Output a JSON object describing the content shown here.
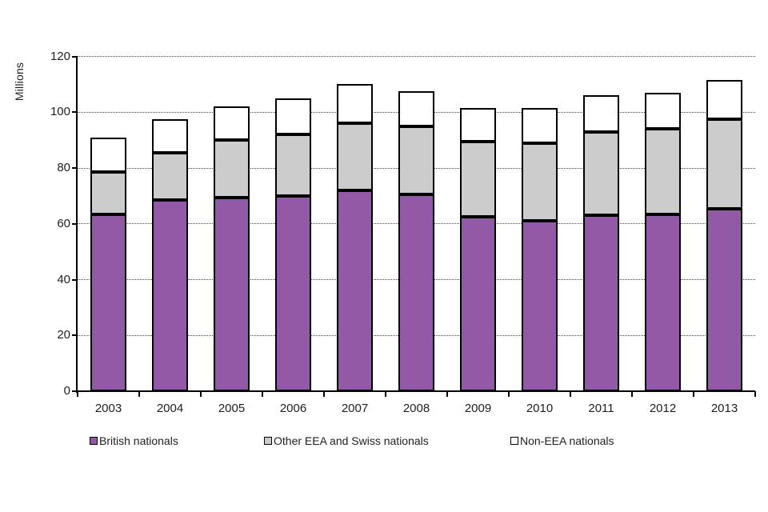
{
  "chart_data": {
    "type": "bar",
    "stacked": true,
    "title": "",
    "ylabel": "Millions",
    "xlabel": "",
    "ylim": [
      0,
      120
    ],
    "yticks": [
      0,
      20,
      40,
      60,
      80,
      100,
      120
    ],
    "grid": "horizontal-dotted",
    "legend_position": "bottom",
    "categories": [
      "2003",
      "2004",
      "2005",
      "2006",
      "2007",
      "2008",
      "2009",
      "2010",
      "2011",
      "2012",
      "2013"
    ],
    "series": [
      {
        "name": "British nationals",
        "color": "#9159A6",
        "border_color": "#000000",
        "values": [
          63.5,
          68.5,
          69.5,
          70,
          72,
          70.5,
          62.5,
          61,
          63,
          63.5,
          65.5
        ]
      },
      {
        "name": "Other EEA and Swiss nationals",
        "color": "#CCCCCC",
        "border_color": "#000000",
        "values": [
          15,
          17,
          20.5,
          22,
          24,
          24.5,
          27,
          28,
          30,
          30.5,
          32
        ]
      },
      {
        "name": "Non-EEA nationals",
        "color": "#FFFFFF",
        "border_color": "#000000",
        "values": [
          12.5,
          12,
          12,
          13,
          14,
          12.5,
          12,
          12.5,
          13,
          13,
          14
        ]
      }
    ],
    "totals": [
      91,
      97.5,
      102,
      105,
      110,
      107.5,
      101.5,
      101.5,
      106,
      107,
      111.5
    ],
    "axis_color": "#000000",
    "text_color": "#1f1f1f"
  }
}
